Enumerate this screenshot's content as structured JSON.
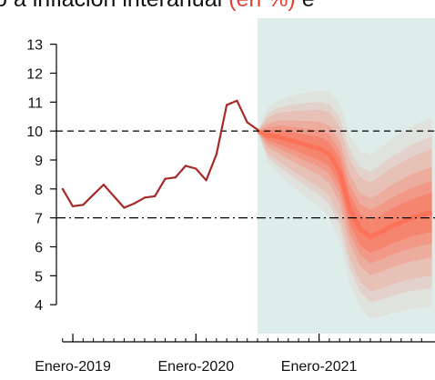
{
  "chart_data": {
    "type": "line",
    "title": {
      "prefix": "o a inflación interanual",
      "highlight": "(en %)",
      "suffix": " e"
    },
    "xlabel": "",
    "ylabel": "",
    "ylim": [
      3.0,
      13.9
    ],
    "xlim": [
      -0.6,
      36.3
    ],
    "grid": false,
    "legend": null,
    "y_ticks": [
      4,
      5,
      6,
      7,
      8,
      9,
      10,
      11,
      12,
      13
    ],
    "x_tick_labels": [
      {
        "label": "Enero-2019",
        "x": 1
      },
      {
        "label": "Enero-2020",
        "x": 13
      },
      {
        "label": "Enero-2021",
        "x": 25
      }
    ],
    "minor_x_ticks": [
      0,
      1,
      2,
      3,
      4,
      5,
      6,
      7,
      8,
      9,
      10,
      11,
      12,
      13,
      14,
      15,
      16,
      17,
      18,
      19,
      20,
      21,
      22,
      23,
      24,
      25,
      26,
      27,
      28,
      29,
      30,
      31,
      32,
      33,
      34,
      35
    ],
    "reference_lines": [
      {
        "y": 10,
        "style": "dashed"
      },
      {
        "y": 7,
        "style": "dashdot"
      }
    ],
    "forecast_region_start": 19,
    "series": [
      {
        "kind": "observed",
        "color": "#a52a2a",
        "x": [
          0,
          1,
          2,
          3,
          4,
          5,
          6,
          7,
          8,
          9,
          10,
          11,
          12,
          13,
          14,
          15,
          16,
          17,
          18,
          19
        ],
        "values": [
          8.0,
          7.4,
          7.45,
          7.8,
          8.15,
          7.75,
          7.35,
          7.5,
          7.7,
          7.75,
          8.35,
          8.4,
          8.8,
          8.7,
          8.3,
          9.2,
          10.9,
          11.05,
          10.3,
          10.05
        ]
      },
      {
        "kind": "forecast-median",
        "color": "#ff6347",
        "x": [
          19,
          20,
          21,
          22,
          23,
          24,
          25,
          26,
          27,
          28,
          29,
          30,
          31,
          32,
          33,
          34,
          35,
          36
        ],
        "values": [
          10.0,
          9.85,
          9.8,
          9.7,
          9.6,
          9.5,
          9.4,
          9.2,
          8.6,
          7.3,
          6.6,
          6.35,
          6.5,
          6.7,
          6.85,
          7.0,
          7.1,
          7.2
        ],
        "bands": [
          {
            "level": 30,
            "half_width": [
              0,
              0.18,
              0.24,
              0.28,
              0.32,
              0.36,
              0.4,
              0.42,
              0.46,
              0.5,
              0.54,
              0.56,
              0.58,
              0.6,
              0.62,
              0.64,
              0.66,
              0.68
            ]
          },
          {
            "level": 50,
            "half_width": [
              0,
              0.28,
              0.38,
              0.46,
              0.52,
              0.58,
              0.63,
              0.68,
              0.75,
              0.82,
              0.88,
              0.92,
              0.95,
              0.98,
              1.01,
              1.04,
              1.06,
              1.08
            ]
          },
          {
            "level": 70,
            "half_width": [
              0,
              0.42,
              0.56,
              0.66,
              0.75,
              0.84,
              0.92,
              0.99,
              1.08,
              1.18,
              1.26,
              1.32,
              1.37,
              1.42,
              1.46,
              1.5,
              1.53,
              1.56
            ]
          },
          {
            "level": 90,
            "half_width": [
              0,
              0.62,
              0.82,
              0.97,
              1.1,
              1.22,
              1.33,
              1.44,
              1.56,
              1.7,
              1.8,
              1.88,
              1.95,
              2.01,
              2.06,
              2.11,
              2.15,
              2.19
            ]
          },
          {
            "level": 95,
            "half_width": [
              0,
              0.76,
              1.0,
              1.18,
              1.34,
              1.48,
              1.6,
              1.73,
              1.88,
              2.04,
              2.16,
              2.25,
              2.33,
              2.4,
              2.46,
              2.52,
              2.57,
              2.62
            ]
          },
          {
            "level": 99,
            "half_width": [
              0,
              0.95,
              1.25,
              1.48,
              1.68,
              1.86,
              2.02,
              2.18,
              2.36,
              2.55,
              2.7,
              2.82,
              2.92,
              3.01,
              3.08,
              3.15,
              3.21,
              3.27
            ]
          }
        ]
      }
    ]
  },
  "colors": {
    "observed_line": "#a52a2a",
    "forecast_band": "#ff6347",
    "forecast_region_bg": "#deecea",
    "title_highlight": "#e3403a",
    "axis": "#000000"
  }
}
